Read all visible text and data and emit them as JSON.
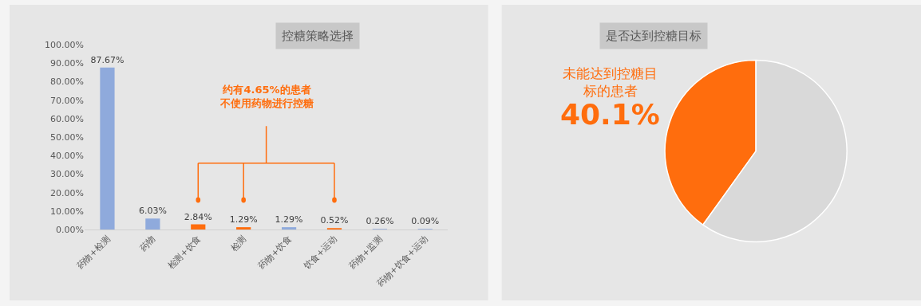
{
  "chart_data": [
    {
      "type": "bar",
      "title": "控糖策略选择",
      "categories": [
        "药物+检测",
        "药物",
        "检测+饮食",
        "检测",
        "药物+饮食",
        "饮食+运动",
        "药物+监测",
        "药物+饮食+运动"
      ],
      "values": [
        87.67,
        6.03,
        2.84,
        1.29,
        1.29,
        0.52,
        0.26,
        0.09
      ],
      "colors": [
        "#8faadc",
        "#8faadc",
        "#ff6d0d",
        "#ff6d0d",
        "#8faadc",
        "#ff6d0d",
        "#8faadc",
        "#8faadc"
      ],
      "value_labels": [
        "87.67%",
        "6.03%",
        "2.84%",
        "1.29%",
        "1.29%",
        "0.52%",
        "0.26%",
        "0.09%"
      ],
      "ylim": [
        0,
        100
      ],
      "yticks": [
        {
          "value": 0,
          "label": "0.00%"
        },
        {
          "value": 10,
          "label": "10.00%"
        },
        {
          "value": 20,
          "label": "20.00%"
        },
        {
          "value": 30,
          "label": "30.00%"
        },
        {
          "value": 40,
          "label": "40.00%"
        },
        {
          "value": 50,
          "label": "50.00%"
        },
        {
          "value": 60,
          "label": "60.00%"
        },
        {
          "value": 70,
          "label": "70.00%"
        },
        {
          "value": 80,
          "label": "80.00%"
        },
        {
          "value": 90,
          "label": "90.00%"
        },
        {
          "value": 100,
          "label": "100.00%"
        }
      ],
      "grid": false,
      "annotations": [
        "约有4.65%的患者不使用药物进行控糖"
      ]
    },
    {
      "type": "pie",
      "title": "是否达到控糖目标",
      "categories": [
        "未能达到控糖目标的患者",
        null
      ],
      "values": [
        40.1,
        59.9
      ],
      "colors": [
        "#ff6d0d",
        "#d9d9d9"
      ],
      "value_labels": [
        "40.1%",
        null
      ]
    }
  ]
}
